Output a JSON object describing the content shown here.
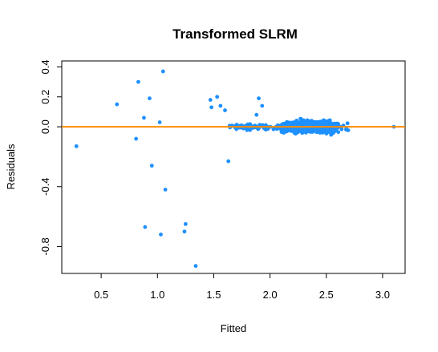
{
  "chart_data": {
    "type": "scatter",
    "title": "Transformed SLRM",
    "xlabel": "Fitted",
    "ylabel": "Residuals",
    "xlim": [
      0.15,
      3.2
    ],
    "ylim": [
      -0.98,
      0.44
    ],
    "x_ticks": [
      0.5,
      1.0,
      1.5,
      2.0,
      2.5,
      3.0
    ],
    "x_tick_labels": [
      "0.5",
      "1.0",
      "1.5",
      "2.0",
      "2.5",
      "3.0"
    ],
    "y_ticks": [
      -0.8,
      -0.4,
      0.0,
      0.2,
      0.4
    ],
    "y_tick_labels": [
      "-0.8",
      "-0.4",
      "0.0",
      "0.2",
      "0.4"
    ],
    "grid": false,
    "point_color": "#1E90FF",
    "reference_line": {
      "y": 0.0,
      "color": "#FF8C00"
    },
    "outlier_points": [
      [
        0.28,
        -0.13
      ],
      [
        0.64,
        0.15
      ],
      [
        0.81,
        -0.08
      ],
      [
        0.83,
        0.3
      ],
      [
        0.88,
        0.06
      ],
      [
        0.89,
        -0.67
      ],
      [
        0.93,
        0.19
      ],
      [
        0.95,
        -0.26
      ],
      [
        1.02,
        0.03
      ],
      [
        1.03,
        -0.72
      ],
      [
        1.05,
        0.37
      ],
      [
        1.07,
        -0.42
      ],
      [
        1.24,
        -0.7
      ],
      [
        1.25,
        -0.65
      ],
      [
        1.34,
        -0.93
      ],
      [
        1.47,
        0.18
      ],
      [
        1.48,
        0.13
      ],
      [
        1.53,
        0.2
      ],
      [
        1.56,
        0.14
      ],
      [
        1.6,
        0.11
      ],
      [
        1.63,
        -0.23
      ],
      [
        1.9,
        0.19
      ],
      [
        1.93,
        0.14
      ],
      [
        1.88,
        0.08
      ],
      [
        3.1,
        0.0
      ]
    ],
    "dense_cluster": {
      "x_range": [
        1.64,
        3.08
      ],
      "center": 2.35,
      "point_count": 900,
      "residual_spread_upper": 0.1,
      "residual_spread_lower": -0.16
    }
  }
}
